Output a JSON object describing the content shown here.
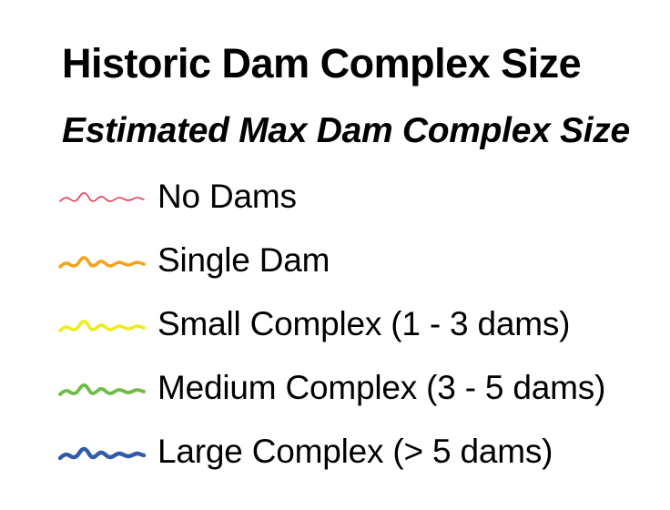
{
  "legend": {
    "title": "Historic Dam Complex Size",
    "subtitle": "Estimated Max Dam Complex Size",
    "items": [
      {
        "label": "No Dams",
        "color": "#e8384f",
        "symbol": "thin-wavy-line-icon"
      },
      {
        "label": "Single Dam",
        "color": "#f7a21b",
        "symbol": "wavy-line-icon"
      },
      {
        "label": "Small Complex (1 - 3 dams)",
        "color": "#eded1a",
        "symbol": "wavy-line-icon"
      },
      {
        "label": "Medium Complex (3 - 5 dams)",
        "color": "#6cbd45",
        "symbol": "wavy-line-icon"
      },
      {
        "label": "Large Complex (> 5 dams)",
        "color": "#2f5ca8",
        "symbol": "thick-wavy-line-icon"
      }
    ]
  }
}
